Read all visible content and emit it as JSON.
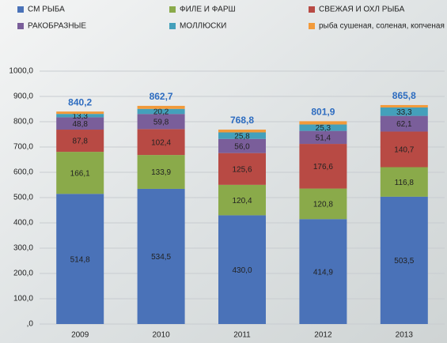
{
  "chart_data": {
    "type": "stacked_bar",
    "categories": [
      "2009",
      "2010",
      "2011",
      "2012",
      "2013"
    ],
    "series": [
      {
        "name": "СМ РЫБА",
        "color": "#4a72b8",
        "values": [
          514.8,
          534.5,
          430.0,
          414.9,
          503.5
        ],
        "value_labels": [
          "514,8",
          "534,5",
          "430,0",
          "414,9",
          "503,5"
        ]
      },
      {
        "name": "ФИЛЕ И ФАРШ",
        "color": "#8aaa4a",
        "values": [
          166.1,
          133.9,
          120.4,
          120.8,
          116.8
        ],
        "value_labels": [
          "166,1",
          "133,9",
          "120,4",
          "120,8",
          "116,8"
        ]
      },
      {
        "name": "СВЕЖАЯ И ОХЛ РЫБА",
        "color": "#b84a44",
        "values": [
          87.8,
          102.4,
          125.6,
          176.6,
          140.7
        ],
        "value_labels": [
          "87,8",
          "102,4",
          "125,6",
          "176,6",
          "140,7"
        ]
      },
      {
        "name": "РАКОБРАЗНЫЕ",
        "color": "#7a5e9a",
        "values": [
          48.8,
          59.8,
          56.0,
          51.4,
          62.1
        ],
        "value_labels": [
          "48,8",
          "59,8",
          "56,0",
          "51,4",
          "62,1"
        ]
      },
      {
        "name": "МОЛЛЮСКИ",
        "color": "#44a0bb",
        "values": [
          13.3,
          20.2,
          25.8,
          25.3,
          33.3
        ],
        "value_labels": [
          "13,3",
          "20,2",
          "25,8",
          "25,3",
          "33,3"
        ]
      },
      {
        "name": "рыба сушеная, соленая, копченая",
        "color": "#f29a3a",
        "values": [
          9.4,
          11.9,
          11.0,
          12.9,
          9.4
        ]
      }
    ],
    "totals": [
      840.2,
      862.7,
      768.8,
      801.9,
      865.8
    ],
    "total_labels": [
      "840,2",
      "862,7",
      "768,8",
      "801,9",
      "865,8"
    ],
    "ylim": [
      0,
      1000
    ],
    "yticks": [
      {
        "value": 0,
        "label": ",0"
      },
      {
        "value": 100,
        "label": "100,0"
      },
      {
        "value": 200,
        "label": "200,0"
      },
      {
        "value": 300,
        "label": "300,0"
      },
      {
        "value": 400,
        "label": "400,0"
      },
      {
        "value": 500,
        "label": "500,0"
      },
      {
        "value": 600,
        "label": "600,0"
      },
      {
        "value": 700,
        "label": "700,0"
      },
      {
        "value": 800,
        "label": "800,0"
      },
      {
        "value": 900,
        "label": "900,0"
      },
      {
        "value": 1000,
        "label": "1000,0"
      }
    ],
    "grid": true
  }
}
